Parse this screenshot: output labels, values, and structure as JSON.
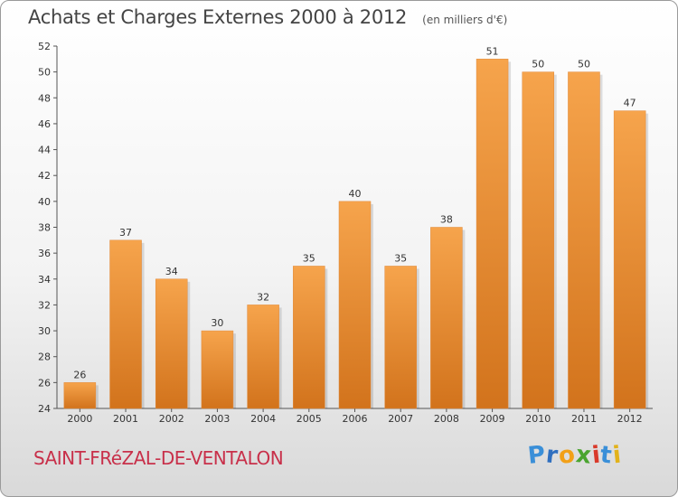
{
  "chart_data": {
    "type": "bar",
    "title": "Achats et Charges Externes 2000 à 2012",
    "unit": "(en milliers d'€)",
    "categories": [
      "2000",
      "2001",
      "2002",
      "2003",
      "2004",
      "2005",
      "2006",
      "2007",
      "2008",
      "2009",
      "2010",
      "2011",
      "2012"
    ],
    "values": [
      26,
      37,
      34,
      30,
      32,
      35,
      40,
      35,
      38,
      51,
      50,
      50,
      47
    ],
    "ylim": [
      24,
      52
    ],
    "yticks": [
      24,
      26,
      28,
      30,
      32,
      34,
      36,
      38,
      40,
      42,
      44,
      46,
      48,
      50,
      52
    ],
    "grid": false,
    "bar_color_top": "#f6a44c",
    "bar_color_bottom": "#d2731c"
  },
  "commune": "SAINT-FRéZAL-DE-VENTALON",
  "brand": {
    "letters": [
      "P",
      "r",
      "o",
      "x",
      "i",
      "t",
      "i"
    ],
    "colors": [
      "#3a8fd8",
      "#2f6fbf",
      "#f2a018",
      "#4aa42f",
      "#d93a2b",
      "#3a8fd8",
      "#e2b21a"
    ]
  }
}
